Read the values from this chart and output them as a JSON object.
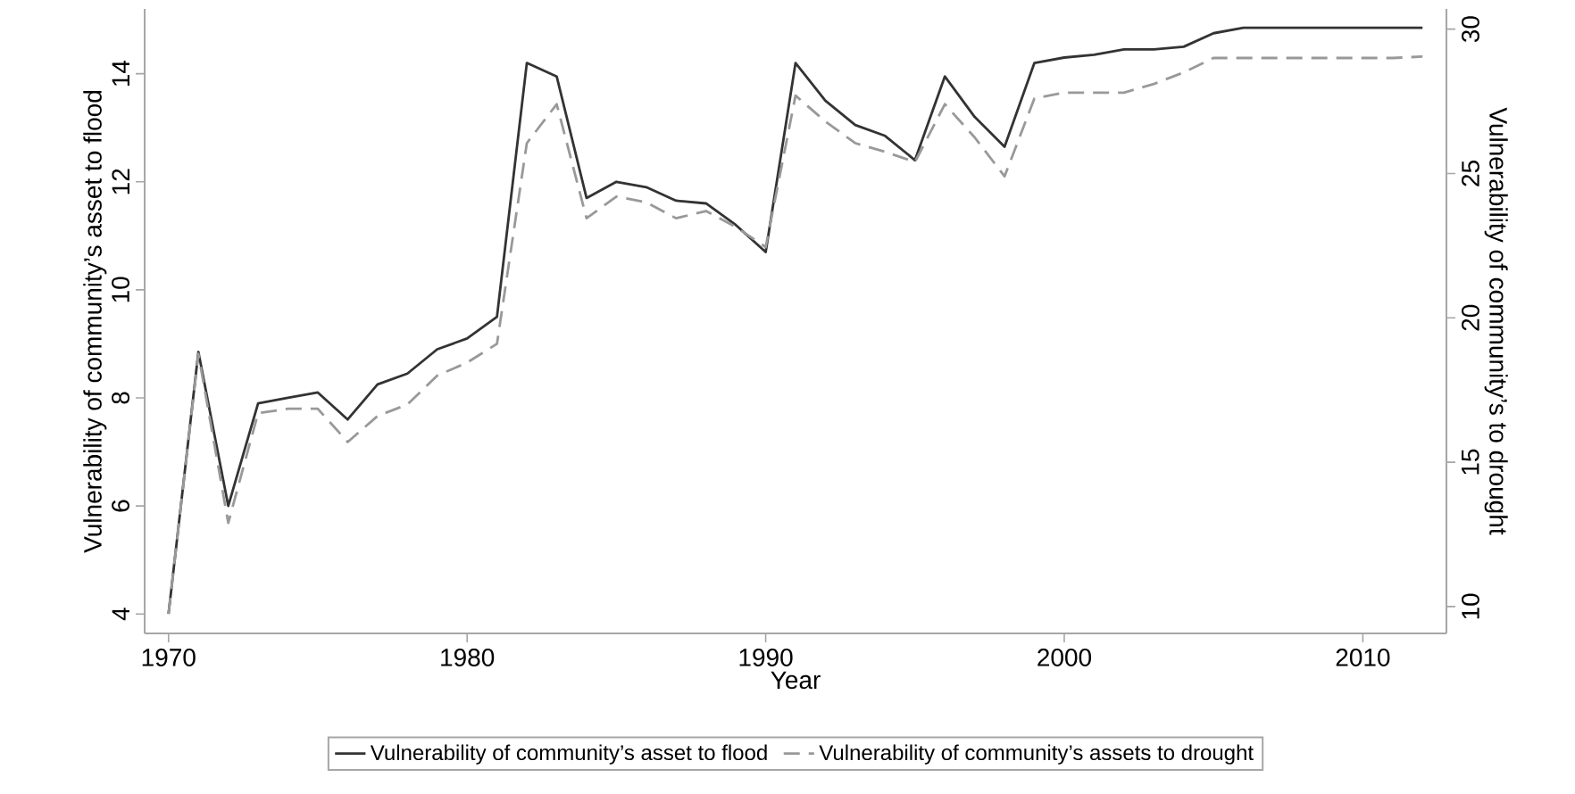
{
  "chart_data": {
    "type": "line",
    "xlabel": "Year",
    "ylabel": "Vulnerability of community’s asset to flood",
    "y2label": "Vulnerability of community’s to drought",
    "x": [
      1970,
      1971,
      1972,
      1973,
      1974,
      1975,
      1976,
      1977,
      1978,
      1979,
      1980,
      1981,
      1982,
      1983,
      1984,
      1985,
      1986,
      1987,
      1988,
      1989,
      1990,
      1991,
      1992,
      1993,
      1994,
      1995,
      1996,
      1997,
      1998,
      1999,
      2000,
      2001,
      2002,
      2003,
      2004,
      2005,
      2006,
      2007,
      2008,
      2009,
      2010,
      2011,
      2012
    ],
    "series": [
      {
        "name": "Vulnerability of community’s asset to flood",
        "color": "#333333",
        "line_style": "solid",
        "values": [
          4.0,
          8.85,
          6.0,
          7.9,
          8.0,
          8.1,
          7.6,
          8.25,
          8.45,
          8.9,
          9.1,
          9.5,
          14.2,
          13.95,
          11.7,
          12.0,
          11.9,
          11.65,
          11.6,
          11.2,
          10.7,
          14.2,
          13.5,
          13.05,
          12.85,
          12.4,
          13.95,
          13.2,
          12.65,
          14.2,
          14.3,
          14.35,
          14.45,
          14.45,
          14.5,
          14.75,
          14.85,
          14.85,
          14.85,
          14.85,
          14.85,
          14.85,
          14.85
        ]
      },
      {
        "name": "Vulnerability of community’s assets to drought",
        "color": "#999999",
        "line_style": "dashed",
        "axis": "y2",
        "values": [
          9.75,
          18.75,
          12.9,
          16.7,
          16.85,
          16.85,
          15.7,
          16.6,
          17.0,
          18.0,
          18.45,
          19.1,
          26.05,
          27.4,
          23.45,
          24.2,
          24.0,
          23.45,
          23.7,
          23.15,
          22.45,
          27.7,
          26.8,
          26.05,
          25.75,
          25.4,
          27.4,
          26.25,
          24.9,
          27.6,
          27.8,
          27.8,
          27.8,
          28.1,
          28.5,
          29.0,
          29.0,
          29.0,
          29.0,
          29.0,
          29.0,
          29.0,
          29.05
        ]
      }
    ],
    "xlim": [
      1969.2,
      2012.8
    ],
    "ylim": [
      3.64,
      15.2
    ],
    "y2lim": [
      9.07,
      30.7
    ],
    "xticks": [
      1970,
      1980,
      1990,
      2000,
      2010
    ],
    "yticks": [
      4,
      6,
      8,
      10,
      12,
      14
    ],
    "y2ticks": [
      10,
      15,
      20,
      25,
      30
    ],
    "legend": "bottom"
  }
}
